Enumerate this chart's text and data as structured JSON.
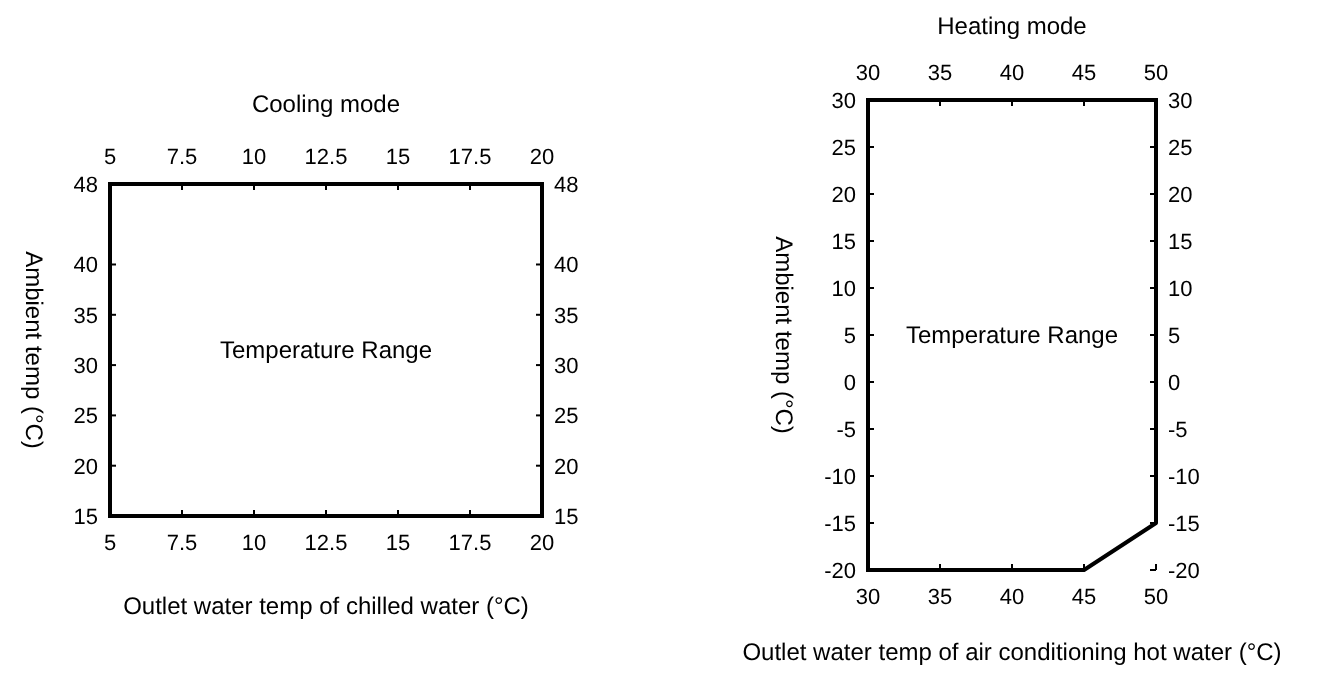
{
  "chart_data": [
    {
      "type": "line",
      "title": "Cooling mode",
      "xlabel": "Outlet water temp of chilled water (°C)",
      "ylabel": "Ambient temp (°C)",
      "xlim": [
        5,
        20
      ],
      "xticks": [
        5,
        7.5,
        10,
        12.5,
        15,
        17.5,
        20
      ],
      "x2lim": [
        5,
        20
      ],
      "x2ticks": [
        5,
        7.5,
        10,
        12.5,
        15,
        17.5,
        20
      ],
      "ylim": [
        15,
        48
      ],
      "yticks": [
        15,
        20,
        25,
        30,
        35,
        40,
        48
      ],
      "y2lim": [
        15,
        48
      ],
      "y2ticks": [
        15,
        20,
        25,
        30,
        35,
        40,
        48
      ],
      "annotations": [
        "Temperature Range"
      ]
    },
    {
      "type": "line",
      "title": "Heating mode",
      "xlabel": "Outlet water temp of air conditioning hot water (°C)",
      "ylabel": "Ambient temp (°C)",
      "xlim": [
        30,
        50
      ],
      "xticks": [
        30,
        35,
        40,
        45,
        50
      ],
      "x2lim": [
        30,
        50
      ],
      "x2ticks": [
        30,
        35,
        40,
        45,
        50
      ],
      "ylim": [
        -20,
        30
      ],
      "yticks": [
        -20,
        -15,
        -10,
        -5,
        0,
        5,
        10,
        15,
        20,
        25,
        30
      ],
      "y2lim": [
        -20,
        30
      ],
      "y2ticks": [
        -20,
        -15,
        -10,
        -5,
        0,
        5,
        10,
        15,
        20,
        25,
        30
      ],
      "grid": false,
      "marker": "none",
      "annotations": [
        "Temperature Range"
      ],
      "series": [
        {
          "color": "#000000",
          "x": [
            30,
            45,
            50,
            50
          ],
          "values": [
            -20,
            -20,
            -15,
            30
          ]
        }
      ]
    }
  ]
}
